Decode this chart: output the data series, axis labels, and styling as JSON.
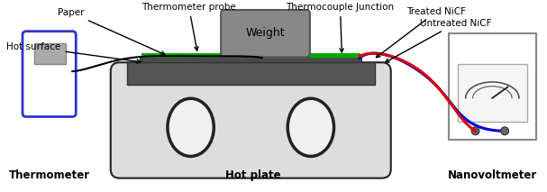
{
  "bg_color": "#ffffff",
  "labels": {
    "thermometer_probe": "Thermometer probe",
    "thermocouple_junction": "Thermocouple Junction",
    "paper": "Paper",
    "hot_surface": "Hot surface",
    "treated_nicf": "Treated NiCF",
    "untreated_nicf": "Untreated NiCF",
    "thermometer": "Thermometer",
    "hot_plate": "Hot plate",
    "nanovoltmeter": "Nanovoltmeter",
    "weight": "Weight"
  },
  "colors": {
    "hotplate_top": "#555555",
    "hotplate_platform": "#444444",
    "hotplate_base": "#dddddd",
    "paper_green": "#00aa00",
    "weight_box": "#888888",
    "thermometer_border": "#3333cc",
    "thermometer_fill": "#ffffff",
    "thermometer_screen": "#aaaaaa",
    "nanovoltmeter_border": "#888888",
    "nanovoltmeter_fill": "#ffffff",
    "wire_red": "#dd0000",
    "wire_blue": "#0000dd",
    "text_color": "#000000",
    "circle_fill": "#f0f0f0",
    "circle_border": "#222222",
    "dot_fill": "#666666"
  }
}
